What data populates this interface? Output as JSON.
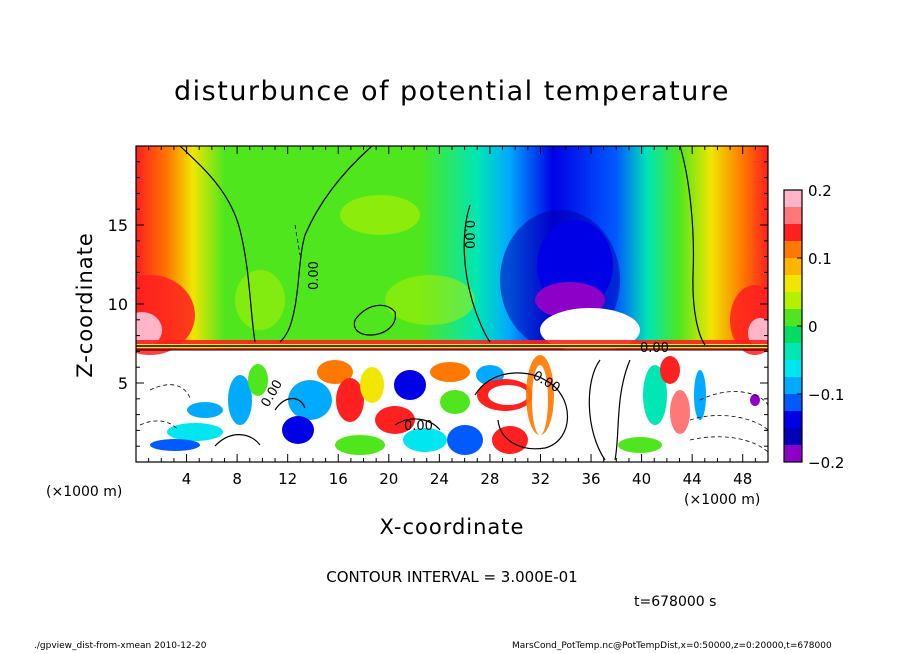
{
  "chart_data": {
    "type": "heatmap",
    "title": "disturbunce of potential temperature",
    "xlabel": "X-coordinate",
    "ylabel": "Z-coordinate",
    "x_unit_label": "(×1000 m)",
    "x_ticks": [
      "4",
      "8",
      "12",
      "16",
      "20",
      "24",
      "28",
      "32",
      "36",
      "40",
      "44",
      "48"
    ],
    "y_ticks": [
      "5",
      "10",
      "15"
    ],
    "xlim": [
      0,
      50
    ],
    "ylim": [
      0,
      20
    ],
    "colorbar": {
      "range": [
        -0.2,
        0.2
      ],
      "tick_labels": [
        "0.2",
        "0.1",
        "0",
        "−0.1",
        "−0.2"
      ],
      "colors": [
        "#ffb4c8",
        "#ff7878",
        "#ff2020",
        "#ff7800",
        "#ffb400",
        "#f0e600",
        "#b4f000",
        "#50e61e",
        "#00dc64",
        "#00e6b4",
        "#00e6f0",
        "#00aaff",
        "#005aff",
        "#0000e6",
        "#0000b4",
        "#8c00c8"
      ]
    },
    "contour_labels": [
      "0.00",
      "0.00",
      "0.00",
      "0.00",
      "0.00",
      "0.00"
    ],
    "annotation": "CONTOUR INTERVAL = 3.000E-01",
    "time_label": "t=678000 s"
  },
  "footer": {
    "left": "./gpview_dist-from-xmean  2010-12-20",
    "right": "MarsCond_PotTemp.nc@PotTempDist,x=0:50000,z=0:20000,t=678000"
  }
}
